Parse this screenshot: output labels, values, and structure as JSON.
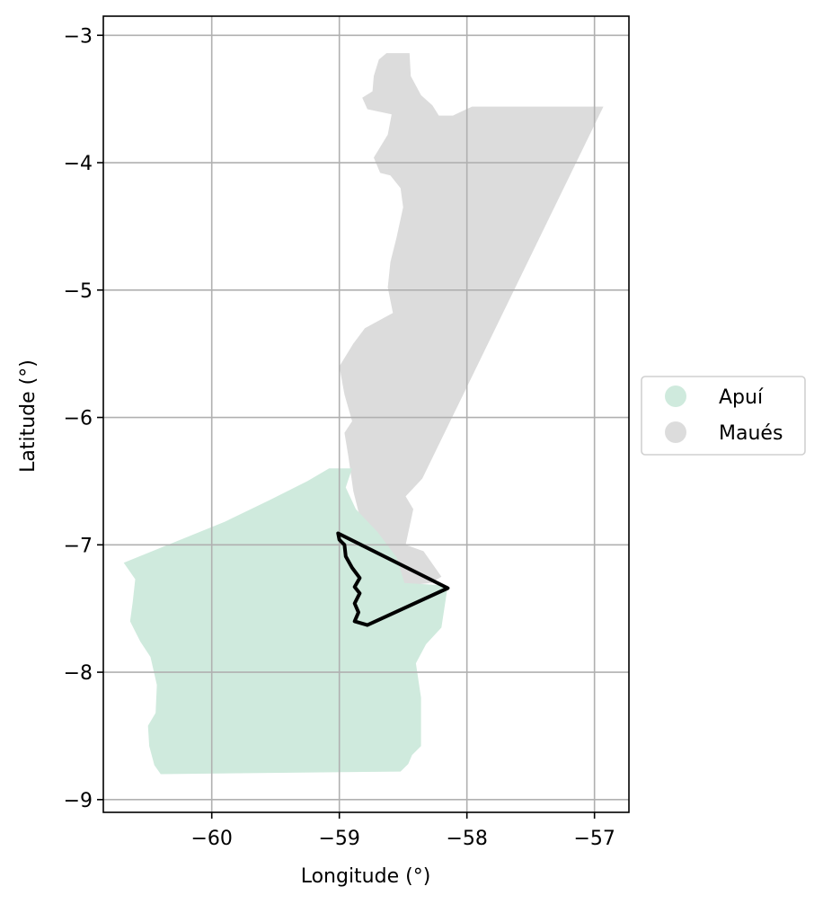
{
  "map": {
    "xlabel": "Longitude (°)",
    "ylabel": "Latitude (°)",
    "xlim": [
      -60.85,
      -56.73
    ],
    "ylim": [
      -9.1,
      -2.85
    ],
    "grid": true,
    "x_ticks": [
      {
        "value": -60,
        "label": "−60"
      },
      {
        "value": -59,
        "label": "−59"
      },
      {
        "value": -58,
        "label": "−58"
      },
      {
        "value": -57,
        "label": "−57"
      }
    ],
    "y_ticks": [
      {
        "value": -3,
        "label": "−3"
      },
      {
        "value": -4,
        "label": "−4"
      },
      {
        "value": -5,
        "label": "−5"
      },
      {
        "value": -6,
        "label": "−6"
      },
      {
        "value": -7,
        "label": "−7"
      },
      {
        "value": -8,
        "label": "−8"
      },
      {
        "value": -9,
        "label": "−9"
      }
    ],
    "legend": {
      "placement": "right-center",
      "entries": [
        {
          "label": "Apuí",
          "color": "#cfeadd"
        },
        {
          "label": "Maués",
          "color": "#dcdcdc"
        }
      ]
    },
    "regions": [
      {
        "name": "Maués",
        "color": "#dcdcdc",
        "coords": [
          [
            -58.63,
            -3.14
          ],
          [
            -58.45,
            -3.14
          ],
          [
            -58.44,
            -3.32
          ],
          [
            -58.36,
            -3.47
          ],
          [
            -58.27,
            -3.55
          ],
          [
            -58.22,
            -3.63
          ],
          [
            -58.11,
            -3.63
          ],
          [
            -57.96,
            -3.56
          ],
          [
            -56.93,
            -3.56
          ],
          [
            -58.35,
            -6.48
          ],
          [
            -58.48,
            -6.62
          ],
          [
            -58.42,
            -6.72
          ],
          [
            -58.48,
            -7.0
          ],
          [
            -58.34,
            -7.05
          ],
          [
            -58.2,
            -7.25
          ],
          [
            -58.28,
            -7.3
          ],
          [
            -58.49,
            -7.32
          ],
          [
            -58.55,
            -7.25
          ],
          [
            -58.62,
            -7.05
          ],
          [
            -58.75,
            -6.92
          ],
          [
            -58.85,
            -6.74
          ],
          [
            -58.89,
            -6.58
          ],
          [
            -58.93,
            -6.3
          ],
          [
            -58.96,
            -6.12
          ],
          [
            -58.9,
            -6.03
          ],
          [
            -58.96,
            -5.82
          ],
          [
            -59.0,
            -5.6
          ],
          [
            -58.89,
            -5.42
          ],
          [
            -58.8,
            -5.3
          ],
          [
            -58.58,
            -5.18
          ],
          [
            -58.62,
            -4.98
          ],
          [
            -58.6,
            -4.78
          ],
          [
            -58.55,
            -4.58
          ],
          [
            -58.5,
            -4.35
          ],
          [
            -58.52,
            -4.2
          ],
          [
            -58.6,
            -4.1
          ],
          [
            -58.68,
            -4.08
          ],
          [
            -58.73,
            -3.96
          ],
          [
            -58.62,
            -3.78
          ],
          [
            -58.59,
            -3.62
          ],
          [
            -58.78,
            -3.58
          ],
          [
            -58.82,
            -3.49
          ],
          [
            -58.74,
            -3.44
          ],
          [
            -58.73,
            -3.32
          ],
          [
            -58.69,
            -3.19
          ]
        ]
      },
      {
        "name": "Apuí",
        "color": "#cfeadd",
        "coords": [
          [
            -59.08,
            -6.4
          ],
          [
            -58.9,
            -6.4
          ],
          [
            -58.95,
            -6.55
          ],
          [
            -58.87,
            -6.72
          ],
          [
            -58.7,
            -6.9
          ],
          [
            -58.55,
            -7.1
          ],
          [
            -58.49,
            -7.3
          ],
          [
            -58.15,
            -7.32
          ],
          [
            -58.2,
            -7.65
          ],
          [
            -58.32,
            -7.78
          ],
          [
            -58.4,
            -7.93
          ],
          [
            -58.36,
            -8.2
          ],
          [
            -58.36,
            -8.58
          ],
          [
            -58.43,
            -8.65
          ],
          [
            -58.46,
            -8.72
          ],
          [
            -58.52,
            -8.78
          ],
          [
            -60.4,
            -8.8
          ],
          [
            -60.45,
            -8.73
          ],
          [
            -60.49,
            -8.58
          ],
          [
            -60.5,
            -8.42
          ],
          [
            -60.44,
            -8.32
          ],
          [
            -60.43,
            -8.1
          ],
          [
            -60.48,
            -7.88
          ],
          [
            -60.56,
            -7.76
          ],
          [
            -60.6,
            -7.68
          ],
          [
            -60.64,
            -7.6
          ],
          [
            -60.62,
            -7.45
          ],
          [
            -60.6,
            -7.27
          ],
          [
            -60.69,
            -7.14
          ],
          [
            -59.9,
            -6.82
          ],
          [
            -59.55,
            -6.65
          ],
          [
            -59.25,
            -6.5
          ]
        ]
      }
    ],
    "outline": {
      "color": "#000000",
      "coords": [
        [
          -59.01,
          -6.91
        ],
        [
          -58.15,
          -7.34
        ],
        [
          -58.78,
          -7.63
        ],
        [
          -58.88,
          -7.6
        ],
        [
          -58.85,
          -7.53
        ],
        [
          -58.88,
          -7.46
        ],
        [
          -58.84,
          -7.38
        ],
        [
          -58.88,
          -7.33
        ],
        [
          -58.84,
          -7.26
        ],
        [
          -58.9,
          -7.18
        ],
        [
          -58.95,
          -7.09
        ],
        [
          -58.96,
          -7.0
        ],
        [
          -59.0,
          -6.96
        ],
        [
          -59.01,
          -6.91
        ]
      ]
    }
  }
}
